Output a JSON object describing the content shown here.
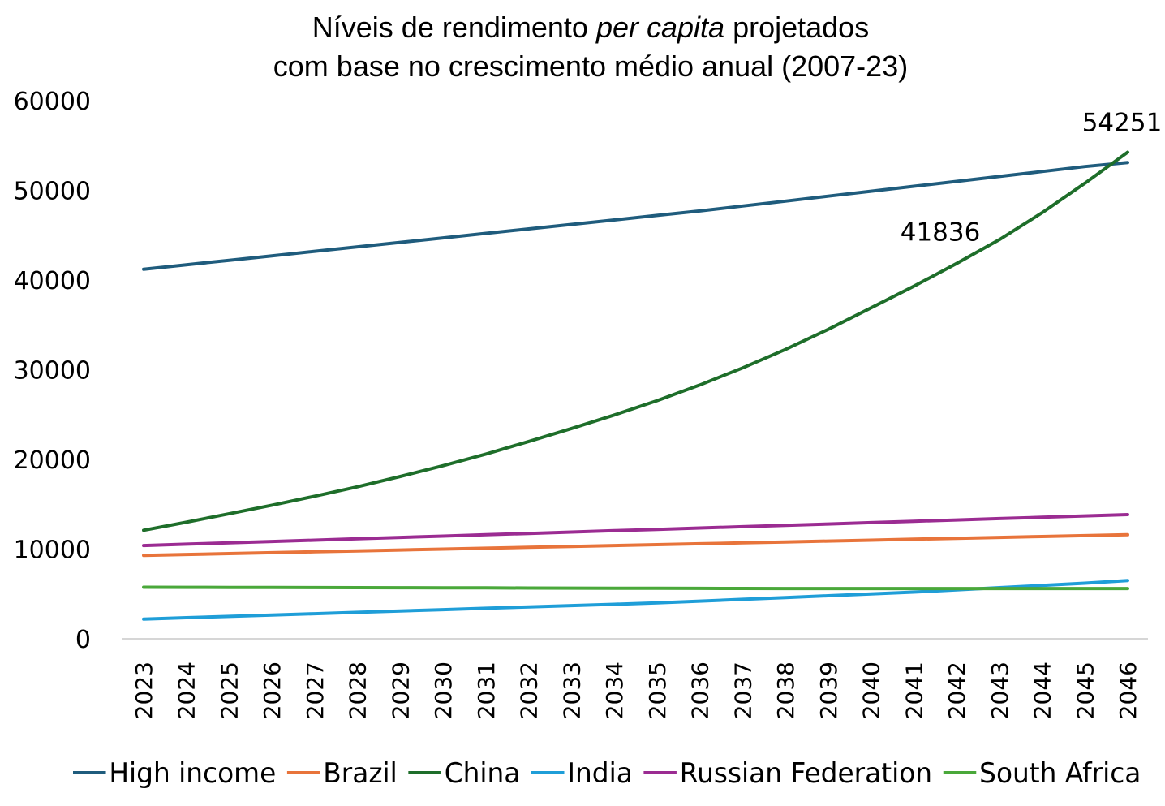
{
  "chart_data": {
    "type": "line",
    "title_lines": [
      {
        "parts": [
          {
            "text": "Níveis de rendimento ",
            "italic": false
          },
          {
            "text": "per capita",
            "italic": true
          },
          {
            "text": " projetados",
            "italic": false
          }
        ]
      },
      {
        "parts": [
          {
            "text": "com base no crescimento médio anual (2007-23)",
            "italic": false
          }
        ]
      }
    ],
    "xlabel": "",
    "ylabel": "",
    "ylim": [
      0,
      60000
    ],
    "yticks": [
      0,
      10000,
      20000,
      30000,
      40000,
      50000,
      60000
    ],
    "x": [
      2023,
      2024,
      2025,
      2026,
      2027,
      2028,
      2029,
      2030,
      2031,
      2032,
      2033,
      2034,
      2035,
      2036,
      2037,
      2038,
      2039,
      2040,
      2041,
      2042,
      2043,
      2044,
      2045,
      2046
    ],
    "grid": false,
    "legend_position": "bottom",
    "series": [
      {
        "name": "High income",
        "color": "#1f5c7d",
        "values": [
          41200,
          41700,
          42200,
          42700,
          43200,
          43700,
          44200,
          44700,
          45200,
          45700,
          46200,
          46700,
          47200,
          47700,
          48250,
          48800,
          49350,
          49900,
          50450,
          51000,
          51550,
          52100,
          52650,
          53100
        ]
      },
      {
        "name": "Brazil",
        "color": "#e8743b",
        "values": [
          9300,
          9400,
          9500,
          9600,
          9700,
          9800,
          9900,
          10000,
          10100,
          10200,
          10300,
          10400,
          10500,
          10600,
          10700,
          10800,
          10900,
          11000,
          11100,
          11200,
          11300,
          11400,
          11500,
          11600
        ]
      },
      {
        "name": "China",
        "color": "#1e6e2a",
        "values": [
          12100,
          13000,
          13950,
          14900,
          15900,
          16950,
          18100,
          19300,
          20600,
          22000,
          23450,
          24950,
          26550,
          28300,
          30200,
          32250,
          34500,
          36900,
          39300,
          41836,
          44500,
          47500,
          50800,
          54251
        ]
      },
      {
        "name": "India",
        "color": "#1f9ed8",
        "values": [
          2200,
          2350,
          2500,
          2650,
          2800,
          2950,
          3100,
          3250,
          3400,
          3550,
          3700,
          3850,
          4000,
          4200,
          4400,
          4600,
          4800,
          5000,
          5200,
          5450,
          5700,
          5950,
          6200,
          6500
        ]
      },
      {
        "name": "Russian Federation",
        "color": "#9b2c92",
        "values": [
          10400,
          10550,
          10700,
          10850,
          11000,
          11150,
          11300,
          11450,
          11600,
          11750,
          11900,
          12050,
          12200,
          12350,
          12500,
          12650,
          12800,
          12950,
          13100,
          13250,
          13400,
          13550,
          13700,
          13850
        ]
      },
      {
        "name": "South Africa",
        "color": "#4aa83a",
        "values": [
          5750,
          5740,
          5730,
          5720,
          5710,
          5700,
          5690,
          5680,
          5670,
          5660,
          5650,
          5640,
          5630,
          5620,
          5610,
          5600,
          5600,
          5600,
          5600,
          5600,
          5600,
          5600,
          5600,
          5600
        ]
      }
    ],
    "annotations": [
      {
        "text": "41836",
        "series": "China",
        "x": 2042
      },
      {
        "text": "54251",
        "series": "China",
        "x": 2046
      }
    ]
  }
}
